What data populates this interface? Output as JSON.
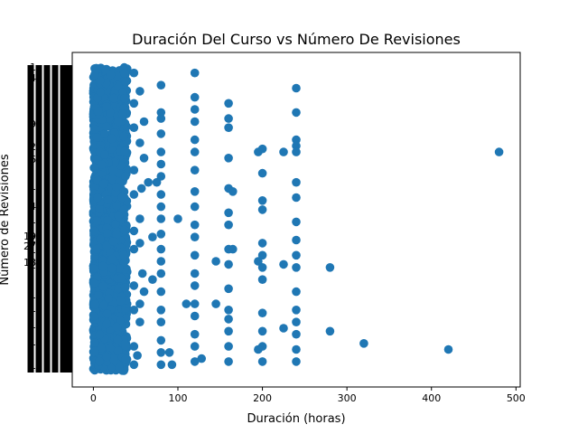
{
  "chart_data": {
    "type": "scatter",
    "title": "Duración Del Curso vs Número De Revisiones",
    "xlabel": "Duración (horas)",
    "ylabel": "Número de Revisiones",
    "xlim": [
      -25,
      505
    ],
    "x_ticks": [
      "0",
      "100",
      "200",
      "300",
      "400",
      "500"
    ],
    "x_tick_values": [
      0,
      100,
      200,
      300,
      400,
      500
    ],
    "y_axis_note": "Categorical y-axis with hundreds of overlapping (illegible) review-count tick labels",
    "visible_y_tick_labels": [
      "1",
      "4",
      "9",
      "2",
      "6",
      "1",
      "4",
      "1",
      "2",
      "1",
      "1",
      "1",
      "19",
      "27",
      "18",
      "1",
      "1",
      "1",
      "1"
    ],
    "marker_color": "#1f77b4",
    "grid": false,
    "series": [
      {
        "name": "",
        "dense_band_x_range": [
          0,
          40
        ],
        "points": [
          {
            "x": 48,
            "y": 0.98
          },
          {
            "x": 48,
            "y": 0.88
          },
          {
            "x": 48,
            "y": 0.8
          },
          {
            "x": 48,
            "y": 0.66
          },
          {
            "x": 48,
            "y": 0.58
          },
          {
            "x": 48,
            "y": 0.46
          },
          {
            "x": 48,
            "y": 0.4
          },
          {
            "x": 48,
            "y": 0.28
          },
          {
            "x": 48,
            "y": 0.2
          },
          {
            "x": 48,
            "y": 0.08
          },
          {
            "x": 48,
            "y": 0.02
          },
          {
            "x": 55,
            "y": 0.92
          },
          {
            "x": 55,
            "y": 0.75
          },
          {
            "x": 57,
            "y": 0.6
          },
          {
            "x": 55,
            "y": 0.5
          },
          {
            "x": 55,
            "y": 0.42
          },
          {
            "x": 58,
            "y": 0.32
          },
          {
            "x": 55,
            "y": 0.22
          },
          {
            "x": 55,
            "y": 0.16
          },
          {
            "x": 52,
            "y": 0.05
          },
          {
            "x": 60,
            "y": 0.82
          },
          {
            "x": 60,
            "y": 0.26
          },
          {
            "x": 60,
            "y": 0.7
          },
          {
            "x": 65,
            "y": 0.62
          },
          {
            "x": 75,
            "y": 0.62
          },
          {
            "x": 70,
            "y": 0.44
          },
          {
            "x": 70,
            "y": 0.3
          },
          {
            "x": 80,
            "y": 0.94
          },
          {
            "x": 80,
            "y": 0.85
          },
          {
            "x": 80,
            "y": 0.83
          },
          {
            "x": 80,
            "y": 0.78
          },
          {
            "x": 80,
            "y": 0.72
          },
          {
            "x": 80,
            "y": 0.68
          },
          {
            "x": 80,
            "y": 0.64
          },
          {
            "x": 80,
            "y": 0.58
          },
          {
            "x": 80,
            "y": 0.54
          },
          {
            "x": 80,
            "y": 0.5
          },
          {
            "x": 80,
            "y": 0.45
          },
          {
            "x": 80,
            "y": 0.4
          },
          {
            "x": 80,
            "y": 0.36
          },
          {
            "x": 80,
            "y": 0.32
          },
          {
            "x": 80,
            "y": 0.26
          },
          {
            "x": 80,
            "y": 0.2
          },
          {
            "x": 80,
            "y": 0.16
          },
          {
            "x": 80,
            "y": 0.1
          },
          {
            "x": 80,
            "y": 0.06
          },
          {
            "x": 80,
            "y": 0.02
          },
          {
            "x": 90,
            "y": 0.06
          },
          {
            "x": 93,
            "y": 0.02
          },
          {
            "x": 100,
            "y": 0.5
          },
          {
            "x": 110,
            "y": 0.22
          },
          {
            "x": 120,
            "y": 0.98
          },
          {
            "x": 120,
            "y": 0.9
          },
          {
            "x": 120,
            "y": 0.86
          },
          {
            "x": 120,
            "y": 0.82
          },
          {
            "x": 120,
            "y": 0.76
          },
          {
            "x": 120,
            "y": 0.72
          },
          {
            "x": 120,
            "y": 0.66
          },
          {
            "x": 120,
            "y": 0.59
          },
          {
            "x": 120,
            "y": 0.54
          },
          {
            "x": 120,
            "y": 0.48
          },
          {
            "x": 120,
            "y": 0.44
          },
          {
            "x": 120,
            "y": 0.38
          },
          {
            "x": 120,
            "y": 0.32
          },
          {
            "x": 120,
            "y": 0.28
          },
          {
            "x": 120,
            "y": 0.22
          },
          {
            "x": 120,
            "y": 0.18
          },
          {
            "x": 120,
            "y": 0.12
          },
          {
            "x": 120,
            "y": 0.08
          },
          {
            "x": 120,
            "y": 0.03
          },
          {
            "x": 128,
            "y": 0.04
          },
          {
            "x": 145,
            "y": 0.36
          },
          {
            "x": 145,
            "y": 0.22
          },
          {
            "x": 160,
            "y": 0.88
          },
          {
            "x": 160,
            "y": 0.83
          },
          {
            "x": 160,
            "y": 0.8
          },
          {
            "x": 160,
            "y": 0.7
          },
          {
            "x": 160,
            "y": 0.6
          },
          {
            "x": 160,
            "y": 0.52
          },
          {
            "x": 160,
            "y": 0.48
          },
          {
            "x": 160,
            "y": 0.4
          },
          {
            "x": 160,
            "y": 0.35
          },
          {
            "x": 160,
            "y": 0.27
          },
          {
            "x": 160,
            "y": 0.2
          },
          {
            "x": 160,
            "y": 0.13
          },
          {
            "x": 160,
            "y": 0.08
          },
          {
            "x": 160,
            "y": 0.03
          },
          {
            "x": 160,
            "y": 0.17
          },
          {
            "x": 165,
            "y": 0.59
          },
          {
            "x": 165,
            "y": 0.4
          },
          {
            "x": 195,
            "y": 0.72
          },
          {
            "x": 200,
            "y": 0.73
          },
          {
            "x": 200,
            "y": 0.65
          },
          {
            "x": 200,
            "y": 0.56
          },
          {
            "x": 200,
            "y": 0.53
          },
          {
            "x": 200,
            "y": 0.42
          },
          {
            "x": 200,
            "y": 0.38
          },
          {
            "x": 200,
            "y": 0.34
          },
          {
            "x": 200,
            "y": 0.3
          },
          {
            "x": 200,
            "y": 0.19
          },
          {
            "x": 200,
            "y": 0.13
          },
          {
            "x": 200,
            "y": 0.08
          },
          {
            "x": 200,
            "y": 0.03
          },
          {
            "x": 195,
            "y": 0.07
          },
          {
            "x": 195,
            "y": 0.36
          },
          {
            "x": 225,
            "y": 0.72
          },
          {
            "x": 225,
            "y": 0.14
          },
          {
            "x": 225,
            "y": 0.35
          },
          {
            "x": 240,
            "y": 0.93
          },
          {
            "x": 240,
            "y": 0.85
          },
          {
            "x": 240,
            "y": 0.76
          },
          {
            "x": 240,
            "y": 0.74
          },
          {
            "x": 240,
            "y": 0.72
          },
          {
            "x": 240,
            "y": 0.62
          },
          {
            "x": 240,
            "y": 0.57
          },
          {
            "x": 240,
            "y": 0.49
          },
          {
            "x": 240,
            "y": 0.43
          },
          {
            "x": 240,
            "y": 0.38
          },
          {
            "x": 240,
            "y": 0.34
          },
          {
            "x": 240,
            "y": 0.26
          },
          {
            "x": 240,
            "y": 0.2
          },
          {
            "x": 240,
            "y": 0.16
          },
          {
            "x": 240,
            "y": 0.12
          },
          {
            "x": 240,
            "y": 0.07
          },
          {
            "x": 240,
            "y": 0.03
          },
          {
            "x": 280,
            "y": 0.34
          },
          {
            "x": 280,
            "y": 0.13
          },
          {
            "x": 320,
            "y": 0.09
          },
          {
            "x": 420,
            "y": 0.07
          },
          {
            "x": 480,
            "y": 0.72
          }
        ]
      }
    ]
  }
}
